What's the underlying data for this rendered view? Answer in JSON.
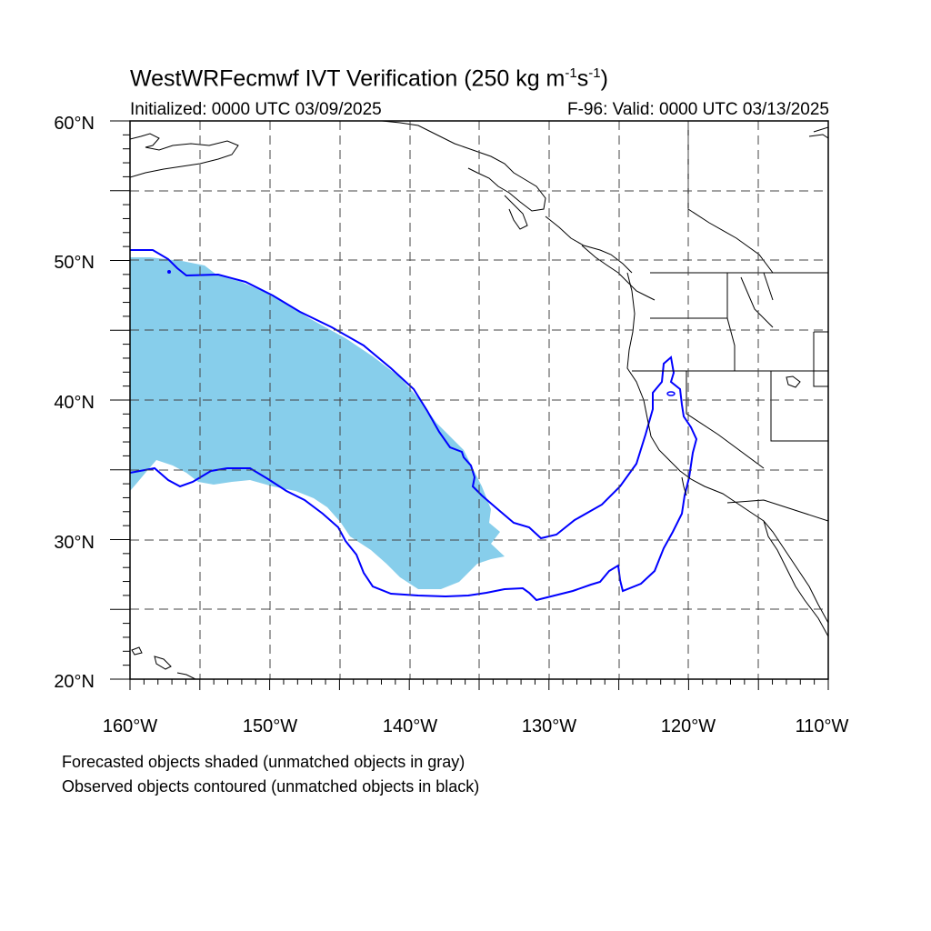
{
  "title": {
    "prefix": "WestWRFecmwf IVT Verification (250 kg m",
    "exp1": "-1",
    "mid": "s",
    "exp2": "-1",
    "suffix": ")"
  },
  "subtitle_left": "Initialized: 0000 UTC 03/09/2025",
  "subtitle_right": "F-96: Valid: 0000 UTC 03/13/2025",
  "lat_labels": [
    "60°N",
    "50°N",
    "40°N",
    "30°N",
    "20°N"
  ],
  "lon_labels": [
    "160°W",
    "150°W",
    "140°W",
    "130°W",
    "120°W",
    "110°W"
  ],
  "notes": [
    "Forecasted objects shaded (unmatched objects in gray)",
    "Observed objects contoured (unmatched objects in black)"
  ],
  "colors": {
    "forecast_fill": "#87ceeb",
    "observed_contour": "#0000ff",
    "coastline": "#000000",
    "grid": "#444444"
  },
  "map_extent": {
    "lon": [
      -160,
      -110
    ],
    "lat": [
      20,
      60
    ]
  },
  "grid_interval_deg": 5
}
